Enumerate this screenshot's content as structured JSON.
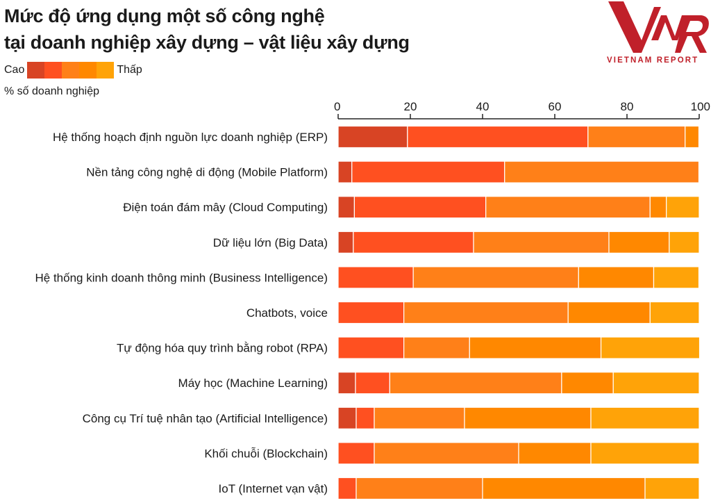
{
  "title_line1": "Mức độ ứng dụng một số công nghệ",
  "title_line2": "tại doanh nghiệp xây dựng – vật liệu xây dựng",
  "legend": {
    "low_label": "Cao",
    "high_label": "Thấp"
  },
  "unit_label": "% số doanh nghiệp",
  "logo": {
    "mark": "VNR",
    "text": "VIETNAM REPORT",
    "color": "#c0202a"
  },
  "chart_data": {
    "type": "bar",
    "orientation": "horizontal",
    "stacked": true,
    "title": "Mức độ ứng dụng một số công nghệ tại doanh nghiệp xây dựng – vật liệu xây dựng",
    "xlabel": "% số doanh nghiệp",
    "xlim": [
      0,
      100
    ],
    "xticks": [
      0,
      20,
      40,
      60,
      80,
      100
    ],
    "axis_position": "top",
    "grid": false,
    "legend_position": "top-left",
    "level_colors": [
      "#d84424",
      "#ff5020",
      "#ff8018",
      "#ff8800",
      "#ffa308"
    ],
    "categories": [
      "Hệ thống hoạch định nguồn lực doanh nghiệp (ERP)",
      "Nền tảng công nghệ di động (Mobile Platform)",
      "Điện toán đám mây (Cloud Computing)",
      "Dữ liệu lớn (Big Data)",
      "Hệ thống kinh doanh thông minh (Business Intelligence)",
      "Chatbots, voice",
      "Tự động hóa quy trình bằng robot (RPA)",
      "Máy học (Machine Learning)",
      "Công cụ Trí tuệ nhân tạo (Artificial Intelligence)",
      "Khối chuỗi (Blockchain)",
      "IoT (Internet vạn vật)"
    ],
    "values": [
      [
        19.2,
        50.0,
        26.9,
        3.8,
        0
      ],
      [
        3.8,
        42.3,
        53.8,
        0,
        0
      ],
      [
        4.5,
        36.4,
        45.5,
        4.5,
        9.1
      ],
      [
        4.2,
        33.3,
        37.5,
        16.7,
        8.3
      ],
      [
        0,
        20.8,
        45.8,
        20.8,
        12.5
      ],
      [
        0,
        18.2,
        45.5,
        22.7,
        13.6
      ],
      [
        0,
        18.2,
        18.2,
        36.4,
        27.3
      ],
      [
        4.8,
        9.5,
        47.6,
        14.3,
        23.8
      ],
      [
        5,
        5,
        25,
        35,
        30
      ],
      [
        0,
        10,
        40,
        20,
        30
      ],
      [
        0,
        5,
        35,
        45,
        15
      ]
    ]
  }
}
